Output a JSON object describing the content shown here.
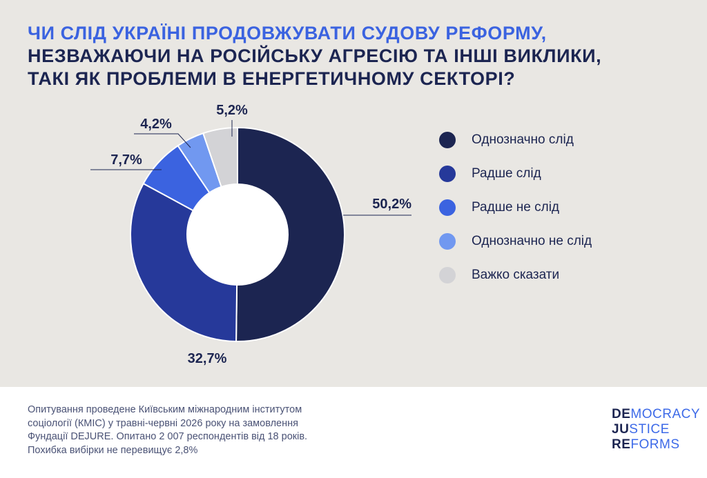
{
  "header": {
    "line1": "ЧИ СЛІД УКРАЇНІ ПРОДОВЖУВАТИ СУДОВУ РЕФОРМУ,",
    "line2": "НЕЗВАЖАЮЧИ НА РОСІЙСЬКУ АГРЕСІЮ ТА ІНШІ ВИКЛИКИ,",
    "line3": "ТАКІ ЯК ПРОБЛЕМИ В ЕНЕРГЕТИЧНОМУ СЕКТОРІ?"
  },
  "chart_data": {
    "type": "pie",
    "style": "donut",
    "title": "ЧИ СЛІД УКРАЇНІ ПРОДОВЖУВАТИ СУДОВУ РЕФОРМУ, НЕЗВАЖАЮЧИ НА РОСІЙСЬКУ АГРЕСІЮ ТА ІНШІ ВИКЛИКИ, ТАКІ ЯК ПРОБЛЕМИ В ЕНЕРГЕТИЧНОМУ СЕКТОРІ?",
    "legend_position": "right",
    "slices": [
      {
        "label": "Однозначно слід",
        "value": 50.2,
        "value_label": "50,2%",
        "color": "#1c2551"
      },
      {
        "label": "Радше слід",
        "value": 32.7,
        "value_label": "32,7%",
        "color": "#26399a"
      },
      {
        "label": "Радше не слід",
        "value": 7.7,
        "value_label": "7,7%",
        "color": "#3b63e0"
      },
      {
        "label": "Однозначно не слід",
        "value": 4.2,
        "value_label": "4,2%",
        "color": "#7198f0"
      },
      {
        "label": "Важко сказати",
        "value": 5.2,
        "value_label": "5,2%",
        "color": "#d3d3d6"
      }
    ]
  },
  "footer": {
    "line1": "Опитування проведене Київським міжнародним інститутом",
    "line2": "соціології (КМІС) у травні-червні 2026 року на замовлення",
    "line3": "Фундації DEJURE. Опитано 2 007 респондентів від 18 років.",
    "line4": "Похибка вибірки не перевищує 2,8%"
  },
  "logo": {
    "line1_bold": "DE",
    "line1_rest": "MOCRACY",
    "line2_bold": "JU",
    "line2_rest": "STICE",
    "line3_bold": "RE",
    "line3_rest": "FORMS"
  },
  "colors": {
    "background": "#e9e7e3",
    "title_accent": "#3b63e0",
    "title_dark": "#1c2551"
  }
}
